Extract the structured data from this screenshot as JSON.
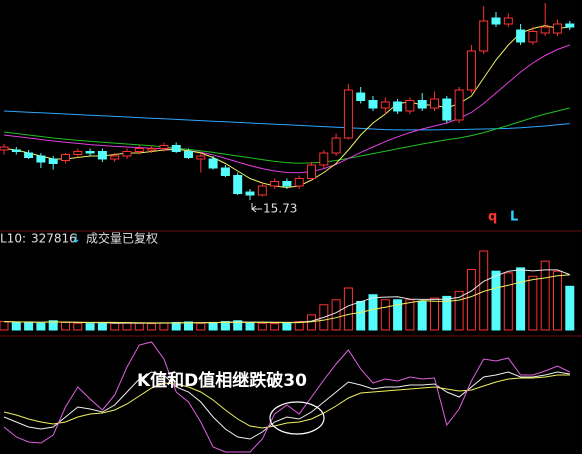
{
  "chart_data": [
    {
      "type": "candlestick",
      "up_color": "#ff3232",
      "down_color": "#54fcfc",
      "ylim": [
        15.2,
        22.4
      ],
      "open": [
        17.4,
        17.4,
        17.3,
        17.2,
        17.1,
        17.05,
        17.25,
        17.35,
        17.35,
        17.1,
        17.2,
        17.35,
        17.4,
        17.45,
        17.55,
        17.35,
        17.1,
        17.1,
        16.8,
        16.55,
        16.0,
        15.9,
        16.2,
        16.35,
        16.2,
        16.45,
        16.9,
        17.3,
        17.8,
        19.3,
        19.05,
        18.8,
        19.0,
        18.7,
        19.05,
        18.8,
        19.1,
        18.4,
        19.4,
        20.7,
        21.8,
        21.6,
        21.4,
        21.0,
        21.3,
        21.3,
        21.6
      ],
      "high": [
        17.6,
        17.5,
        17.4,
        17.3,
        17.2,
        17.3,
        17.45,
        17.45,
        17.45,
        17.3,
        17.45,
        17.55,
        17.55,
        17.65,
        17.65,
        17.45,
        17.3,
        17.2,
        16.9,
        16.65,
        16.1,
        16.3,
        16.45,
        16.45,
        16.55,
        17.0,
        17.4,
        17.95,
        19.6,
        19.5,
        19.2,
        19.15,
        19.1,
        19.15,
        19.3,
        19.35,
        19.2,
        19.5,
        20.9,
        22.2,
        22.0,
        21.95,
        21.6,
        21.5,
        22.3,
        21.75,
        21.7
      ],
      "low": [
        17.25,
        17.25,
        17.1,
        16.8,
        16.75,
        16.95,
        17.15,
        17.2,
        17.0,
        17.0,
        17.1,
        17.25,
        17.3,
        17.35,
        17.3,
        17.1,
        16.65,
        16.75,
        16.5,
        15.9,
        15.73,
        15.85,
        16.1,
        16.1,
        16.1,
        16.4,
        16.8,
        17.2,
        17.75,
        18.95,
        18.7,
        18.6,
        18.6,
        18.6,
        18.7,
        18.7,
        18.3,
        18.3,
        19.3,
        20.6,
        21.5,
        21.5,
        20.9,
        20.9,
        21.2,
        21.2,
        21.4
      ],
      "close": [
        17.5,
        17.35,
        17.15,
        17.0,
        16.95,
        17.25,
        17.35,
        17.3,
        17.1,
        17.2,
        17.35,
        17.45,
        17.45,
        17.55,
        17.35,
        17.15,
        17.2,
        16.8,
        16.55,
        15.95,
        15.9,
        16.2,
        16.35,
        16.2,
        16.45,
        16.9,
        17.3,
        17.8,
        19.4,
        19.05,
        18.8,
        19.0,
        18.7,
        19.05,
        18.8,
        19.1,
        18.4,
        19.4,
        20.7,
        21.7,
        21.6,
        21.8,
        21.0,
        21.35,
        21.5,
        21.6,
        21.5
      ],
      "overlays": [
        {
          "color": "#2aa8ff",
          "values": [
            18.7,
            18.68,
            18.66,
            18.64,
            18.62,
            18.6,
            18.58,
            18.56,
            18.54,
            18.52,
            18.5,
            18.48,
            18.46,
            18.44,
            18.42,
            18.4,
            18.38,
            18.36,
            18.34,
            18.32,
            18.3,
            18.28,
            18.26,
            18.24,
            18.22,
            18.2,
            18.18,
            18.16,
            18.14,
            18.12,
            18.1,
            18.08,
            18.07,
            18.07,
            18.07,
            18.07,
            18.08,
            18.08,
            18.09,
            18.1,
            18.11,
            18.12,
            18.14,
            18.17,
            18.2,
            18.24,
            18.28
          ]
        },
        {
          "color": "#22c022",
          "values": [
            18.0,
            17.95,
            17.9,
            17.85,
            17.8,
            17.76,
            17.72,
            17.69,
            17.66,
            17.63,
            17.6,
            17.57,
            17.54,
            17.5,
            17.46,
            17.42,
            17.37,
            17.32,
            17.26,
            17.2,
            17.14,
            17.08,
            17.02,
            16.98,
            16.96,
            16.97,
            17.0,
            17.05,
            17.12,
            17.2,
            17.28,
            17.36,
            17.44,
            17.52,
            17.6,
            17.67,
            17.74,
            17.8,
            17.88,
            17.98,
            18.1,
            18.22,
            18.35,
            18.48,
            18.6,
            18.7,
            18.8
          ]
        },
        {
          "color": "#e040e0",
          "values": [
            17.9,
            17.85,
            17.8,
            17.75,
            17.7,
            17.66,
            17.62,
            17.58,
            17.55,
            17.52,
            17.5,
            17.48,
            17.46,
            17.44,
            17.42,
            17.38,
            17.32,
            17.24,
            17.12,
            17.0,
            16.88,
            16.78,
            16.7,
            16.65,
            16.64,
            16.68,
            16.78,
            16.92,
            17.12,
            17.32,
            17.5,
            17.68,
            17.84,
            17.98,
            18.1,
            18.2,
            18.3,
            18.45,
            18.65,
            18.95,
            19.3,
            19.65,
            20.0,
            20.3,
            20.55,
            20.75,
            20.9
          ]
        },
        {
          "color": "#f0f060",
          "values": [
            17.45,
            17.4,
            17.3,
            17.2,
            17.1,
            17.1,
            17.15,
            17.2,
            17.2,
            17.25,
            17.3,
            17.3,
            17.35,
            17.4,
            17.42,
            17.38,
            17.3,
            17.15,
            16.95,
            16.7,
            16.45,
            16.3,
            16.2,
            16.15,
            16.2,
            16.4,
            16.65,
            16.95,
            17.4,
            17.9,
            18.3,
            18.6,
            18.95,
            19.0,
            18.9,
            18.9,
            18.8,
            18.95,
            19.2,
            19.8,
            20.4,
            20.9,
            21.3,
            21.45,
            21.55,
            21.45,
            21.5
          ]
        }
      ],
      "markers": [
        {
          "label": "q",
          "color": "#ff3232"
        },
        {
          "label": "L",
          "color": "#2ad4ff"
        }
      ]
    },
    {
      "type": "bar",
      "ylim": [
        0,
        500000
      ],
      "label": "L10:",
      "label_arrow": "↓",
      "note": "成交量已复权",
      "values": [
        50000,
        45000,
        48000,
        40000,
        55000,
        45000,
        40000,
        38000,
        42000,
        40000,
        45000,
        40000,
        38000,
        42000,
        45000,
        48000,
        40000,
        45000,
        50000,
        55000,
        45000,
        40000,
        38000,
        45000,
        50000,
        90000,
        150000,
        180000,
        250000,
        170000,
        210000,
        180000,
        180000,
        180000,
        170000,
        190000,
        200000,
        230000,
        360000,
        470000,
        350000,
        340000,
        370000,
        320000,
        410000,
        350000,
        260000
      ],
      "lines": [
        {
          "color": "#e8e8e8",
          "values": [
            50000,
            48000,
            47000,
            46000,
            48000,
            47000,
            45000,
            44000,
            44000,
            41000,
            41000,
            41000,
            41000,
            41000,
            42000,
            43000,
            43000,
            44000,
            46000,
            48000,
            47000,
            47000,
            46000,
            45000,
            46000,
            53000,
            75000,
            103000,
            144000,
            168000,
            192000,
            196000,
            198000,
            184000,
            182000,
            182000,
            184000,
            194000,
            232000,
            290000,
            322000,
            350000,
            358000,
            352000,
            358000,
            358000,
            330000
          ]
        },
        {
          "color": "#f0f060",
          "values": [
            50000,
            48000,
            47000,
            46000,
            48000,
            47000,
            46000,
            45000,
            45000,
            45000,
            44000,
            43000,
            42000,
            42000,
            42000,
            43000,
            43000,
            44000,
            45000,
            45000,
            45000,
            45000,
            44000,
            44000,
            44000,
            49000,
            59000,
            73000,
            93000,
            105000,
            122000,
            136000,
            150000,
            163000,
            175000,
            171000,
            170000,
            178000,
            199000,
            230000,
            250000,
            266000,
            285000,
            300000,
            310000,
            323000,
            327816
          ]
        }
      ]
    },
    {
      "type": "line",
      "ylim": [
        -5,
        105
      ],
      "annotation": "K值和D值相继跌破30",
      "series": [
        {
          "color": "#f0f0f0",
          "values": [
            30,
            25,
            20,
            18,
            20,
            30,
            40,
            38,
            35,
            42,
            55,
            68,
            75,
            72,
            60,
            55,
            45,
            30,
            18,
            10,
            8,
            15,
            25,
            30,
            28,
            35,
            45,
            55,
            65,
            62,
            58,
            60,
            60,
            62,
            62,
            63,
            55,
            50,
            60,
            70,
            72,
            75,
            70,
            70,
            72,
            75,
            73
          ]
        },
        {
          "color": "#f0f060",
          "values": [
            35,
            32,
            28,
            25,
            23,
            25,
            30,
            33,
            34,
            37,
            43,
            51,
            59,
            64,
            63,
            60,
            55,
            47,
            37,
            28,
            21,
            19,
            21,
            24,
            25,
            28,
            34,
            41,
            49,
            54,
            55,
            56,
            57,
            58,
            59,
            60,
            58,
            56,
            57,
            61,
            65,
            68,
            69,
            69,
            70,
            72,
            72
          ]
        },
        {
          "color": "#e060e0",
          "values": [
            20,
            10,
            5,
            4,
            12,
            40,
            60,
            48,
            37,
            52,
            80,
            102,
            105,
            88,
            55,
            45,
            25,
            0,
            -5,
            -5,
            -5,
            8,
            33,
            42,
            33,
            50,
            67,
            83,
            97,
            78,
            64,
            68,
            66,
            70,
            68,
            69,
            22,
            38,
            66,
            88,
            86,
            89,
            72,
            72,
            76,
            81,
            75
          ]
        }
      ]
    }
  ]
}
